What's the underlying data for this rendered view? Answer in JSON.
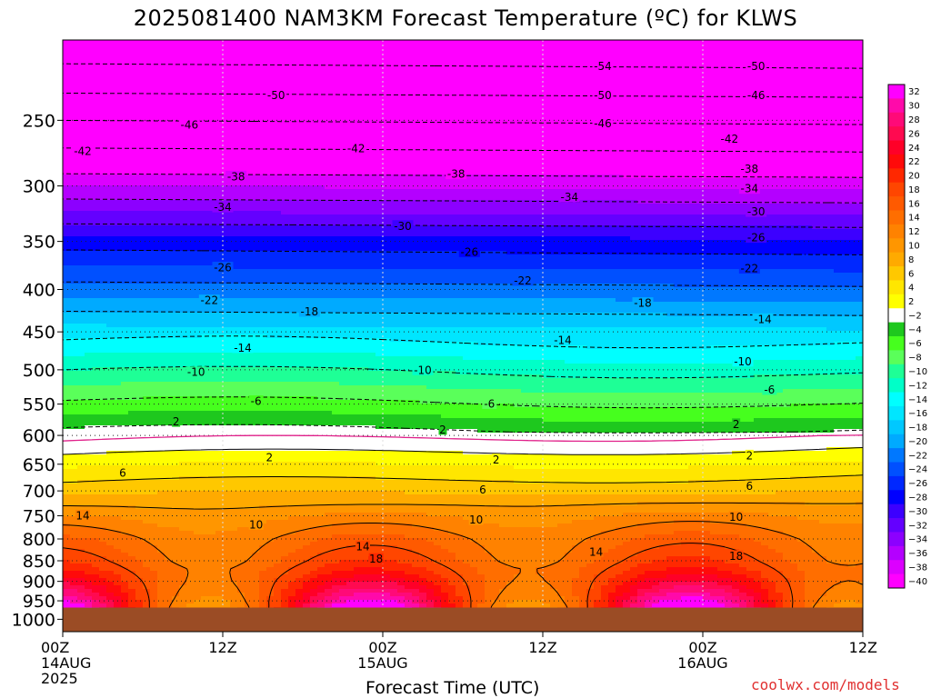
{
  "chart_data": {
    "type": "heatmap",
    "title": "2025081400 NAM3KM Forecast Temperature (ºC) for KLWS",
    "xlabel": "Forecast Time (UTC)",
    "ylabel": "",
    "x_ticks": [
      {
        "hour": 0,
        "lines": [
          "00Z",
          "14AUG",
          "2025"
        ]
      },
      {
        "hour": 12,
        "lines": [
          "12Z"
        ]
      },
      {
        "hour": 24,
        "lines": [
          "00Z",
          "15AUG"
        ]
      },
      {
        "hour": 36,
        "lines": [
          "12Z"
        ]
      },
      {
        "hour": 48,
        "lines": [
          "00Z",
          "16AUG"
        ]
      },
      {
        "hour": 60,
        "lines": [
          "12Z"
        ]
      }
    ],
    "xlim": [
      0,
      60
    ],
    "y_ticks": [
      250,
      300,
      350,
      400,
      450,
      500,
      550,
      600,
      650,
      700,
      750,
      800,
      850,
      900,
      950,
      1000
    ],
    "ylim": [
      1035,
      200
    ],
    "y_scale": "log-pressure",
    "surface_pressure": 968,
    "colorbar": {
      "labels": [
        32,
        30,
        28,
        26,
        24,
        22,
        20,
        18,
        16,
        14,
        12,
        10,
        8,
        6,
        4,
        2,
        -2,
        -4,
        -6,
        -8,
        -10,
        -12,
        -14,
        -16,
        -18,
        -20,
        -22,
        -24,
        -26,
        -28,
        -30,
        -32,
        -34,
        -36,
        -38,
        -40
      ],
      "colors": [
        "#ff00ff",
        "#ff0aaa",
        "#ff0a78",
        "#ff0a50",
        "#ff0028",
        "#ff0a0a",
        "#ff2800",
        "#ff4600",
        "#ff5a00",
        "#ff6e00",
        "#ff8200",
        "#ff9600",
        "#ffaa00",
        "#ffc800",
        "#ffe600",
        "#ffff00",
        "#ffffff",
        "#1ec81e",
        "#46ff1e",
        "#5aff5a",
        "#1eff96",
        "#00ffc8",
        "#00ffff",
        "#00e6ff",
        "#00c8ff",
        "#00aaff",
        "#0078ff",
        "#0050ff",
        "#0028ff",
        "#0000ff",
        "#3c00ff",
        "#6400ff",
        "#8c00ff",
        "#b400ff",
        "#dc00ff",
        "#ff00ff"
      ]
    },
    "contour_levels": [
      -54,
      -50,
      -46,
      -42,
      -38,
      -34,
      -30,
      -26,
      -22,
      -18,
      -14,
      -10,
      -6,
      -2,
      0,
      2,
      6,
      10,
      14,
      18
    ],
    "contour_labels": [
      {
        "hour": 40.5,
        "p": 215,
        "v": -54
      },
      {
        "hour": 52,
        "p": 215,
        "v": -50
      },
      {
        "hour": 16,
        "p": 233,
        "v": -50
      },
      {
        "hour": 40.5,
        "p": 233,
        "v": -50
      },
      {
        "hour": 52,
        "p": 233,
        "v": -46
      },
      {
        "hour": 9.5,
        "p": 253,
        "v": -46
      },
      {
        "hour": 40.5,
        "p": 252,
        "v": -46
      },
      {
        "hour": 1.5,
        "p": 272,
        "v": -42
      },
      {
        "hour": 22,
        "p": 270,
        "v": -42
      },
      {
        "hour": 50,
        "p": 263,
        "v": -42
      },
      {
        "hour": 51.5,
        "p": 286,
        "v": -38
      },
      {
        "hour": 13,
        "p": 292,
        "v": -38
      },
      {
        "hour": 29.5,
        "p": 290,
        "v": -38
      },
      {
        "hour": 51.5,
        "p": 302,
        "v": -34
      },
      {
        "hour": 12,
        "p": 318,
        "v": -34
      },
      {
        "hour": 38,
        "p": 309,
        "v": -34
      },
      {
        "hour": 52,
        "p": 322,
        "v": -30
      },
      {
        "hour": 25.5,
        "p": 335,
        "v": -30
      },
      {
        "hour": 52,
        "p": 346,
        "v": -26
      },
      {
        "hour": 12,
        "p": 376,
        "v": -26
      },
      {
        "hour": 30.5,
        "p": 360,
        "v": -26
      },
      {
        "hour": 51.5,
        "p": 377,
        "v": -22
      },
      {
        "hour": 34.5,
        "p": 390,
        "v": -22
      },
      {
        "hour": 11,
        "p": 412,
        "v": -22
      },
      {
        "hour": 18.5,
        "p": 425,
        "v": -18
      },
      {
        "hour": 43.5,
        "p": 415,
        "v": -18
      },
      {
        "hour": 52.5,
        "p": 434,
        "v": -14
      },
      {
        "hour": 37.5,
        "p": 460,
        "v": -14
      },
      {
        "hour": 13.5,
        "p": 470,
        "v": -14
      },
      {
        "hour": 51,
        "p": 488,
        "v": -10
      },
      {
        "hour": 10,
        "p": 503,
        "v": -10
      },
      {
        "hour": 27,
        "p": 500,
        "v": -10
      },
      {
        "hour": 53,
        "p": 528,
        "v": -6
      },
      {
        "hour": 14.5,
        "p": 545,
        "v": -6
      },
      {
        "hour": 32,
        "p": 549,
        "v": -6
      },
      {
        "hour": 8.5,
        "p": 577,
        "v": 2
      },
      {
        "hour": 28.5,
        "p": 590,
        "v": 2
      },
      {
        "hour": 50.5,
        "p": 581,
        "v": 2
      },
      {
        "hour": 15.5,
        "p": 637,
        "v": 2
      },
      {
        "hour": 32.5,
        "p": 641,
        "v": 2
      },
      {
        "hour": 51.5,
        "p": 634,
        "v": 2
      },
      {
        "hour": 4.5,
        "p": 665,
        "v": 6
      },
      {
        "hour": 31.5,
        "p": 697,
        "v": 6
      },
      {
        "hour": 51.5,
        "p": 690,
        "v": 6
      },
      {
        "hour": 1.5,
        "p": 749,
        "v": 14
      },
      {
        "hour": 14.5,
        "p": 768,
        "v": 10
      },
      {
        "hour": 31,
        "p": 758,
        "v": 10
      },
      {
        "hour": 50.5,
        "p": 752,
        "v": 10
      },
      {
        "hour": 22.5,
        "p": 816,
        "v": 14
      },
      {
        "hour": 40,
        "p": 829,
        "v": 14
      },
      {
        "hour": 23.5,
        "p": 845,
        "v": 18
      },
      {
        "hour": 50.5,
        "p": 838,
        "v": 18
      }
    ]
  },
  "credit": "coolwx.com/models"
}
